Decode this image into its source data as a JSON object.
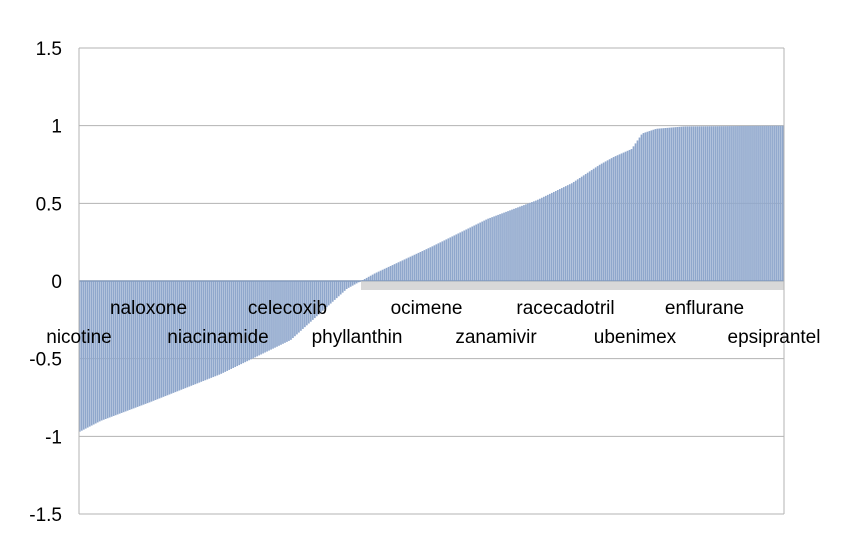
{
  "chart_data": {
    "type": "bar",
    "title": "",
    "xlabel": "",
    "ylabel": "",
    "ylim": [
      -1.5,
      1.5
    ],
    "yticks": [
      1.5,
      1,
      0.5,
      0,
      -0.5,
      -1,
      -1.5
    ],
    "ytick_labels": [
      "1.5",
      "1",
      "0.5",
      "0",
      "-0.5",
      "-1",
      "-1.5"
    ],
    "grid": true,
    "legend": "none",
    "bar_color": "#8fa7cc",
    "category_labels": [
      {
        "text": "nicotine",
        "row": 2,
        "pos": 0.0
      },
      {
        "text": "naloxone",
        "row": 1,
        "pos": 0.1
      },
      {
        "text": "niacinamide",
        "row": 2,
        "pos": 0.2
      },
      {
        "text": "celecoxib",
        "row": 1,
        "pos": 0.3
      },
      {
        "text": "phyllanthin",
        "row": 2,
        "pos": 0.4
      },
      {
        "text": "ocimene",
        "row": 1,
        "pos": 0.5
      },
      {
        "text": "zanamivir",
        "row": 2,
        "pos": 0.6
      },
      {
        "text": "racecadotril",
        "row": 1,
        "pos": 0.7
      },
      {
        "text": "ubenimex",
        "row": 2,
        "pos": 0.8
      },
      {
        "text": "enflurane",
        "row": 1,
        "pos": 0.9
      },
      {
        "text": "epsiprantel",
        "row": 2,
        "pos": 1.0
      }
    ],
    "n_bars": 354,
    "sorted_profile": [
      [
        0.0,
        -0.97
      ],
      [
        0.03,
        -0.9
      ],
      [
        0.1,
        -0.78
      ],
      [
        0.2,
        -0.6
      ],
      [
        0.3,
        -0.38
      ],
      [
        0.38,
        -0.05
      ],
      [
        0.42,
        0.05
      ],
      [
        0.5,
        0.22
      ],
      [
        0.58,
        0.4
      ],
      [
        0.65,
        0.52
      ],
      [
        0.7,
        0.63
      ],
      [
        0.74,
        0.75
      ],
      [
        0.76,
        0.8
      ],
      [
        0.785,
        0.85
      ],
      [
        0.8,
        0.95
      ],
      [
        0.82,
        0.98
      ],
      [
        0.86,
        0.995
      ],
      [
        1.0,
        1.0
      ]
    ]
  }
}
